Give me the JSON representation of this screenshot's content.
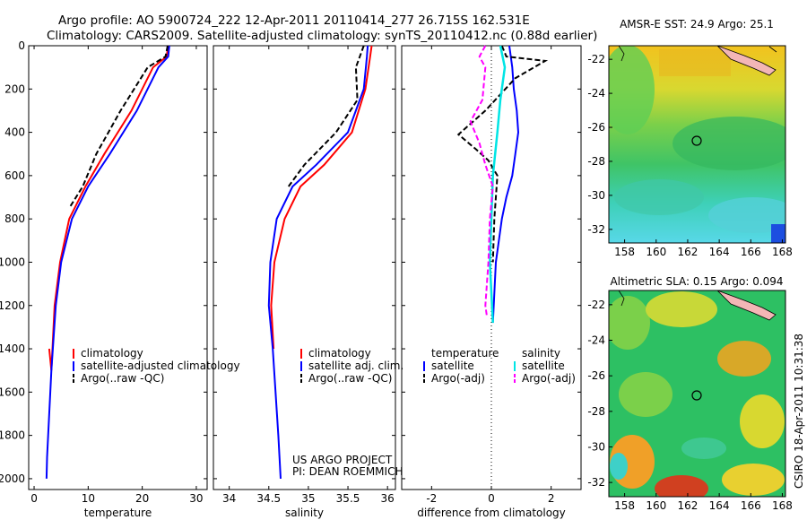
{
  "title": {
    "line1": "Argo profile: AO 5900724_222 12-Apr-2011 20110414_277 26.715S 162.531E",
    "line2": "Climatology: CARS2009. Satellite-adjusted climatology: synTS_20110412.nc (0.88d earlier)"
  },
  "side_label": "CSIRO 18-Apr-2011 10:31:38",
  "colors": {
    "climatology": "#ff0000",
    "satellite": "#0000ff",
    "argo": "#000000",
    "satellite_salinity": "#00e5e5",
    "argo_salinity": "#ff00ff"
  },
  "chart_data": [
    {
      "type": "line",
      "id": "temperature",
      "xlabel": "temperature",
      "ylabel": "",
      "xlim": [
        -1,
        32
      ],
      "ylim": [
        2050,
        0
      ],
      "xticks": [
        0,
        10,
        20,
        30
      ],
      "yticks": [
        0,
        200,
        400,
        600,
        800,
        1000,
        1200,
        1400,
        1600,
        1800,
        2000
      ],
      "legend": {
        "position": "lower-right",
        "entries": [
          "climatology",
          "satellite-adjusted climatology",
          "Argo(..raw -QC)"
        ]
      },
      "series": [
        {
          "name": "climatology",
          "color": "#ff0000",
          "dash": "",
          "x": [
            24.8,
            24.5,
            22,
            18,
            13,
            9.5,
            6.5,
            4.8,
            3.8,
            3.2,
            2.8
          ],
          "y": [
            0,
            50,
            100,
            300,
            500,
            650,
            800,
            1000,
            1200,
            1500,
            1400
          ]
        },
        {
          "name": "satellite-adjusted climatology",
          "color": "#0000ff",
          "dash": "",
          "x": [
            25,
            24.8,
            23,
            19,
            14,
            10,
            7,
            5,
            4,
            3.2,
            2.4,
            2.3
          ],
          "y": [
            0,
            50,
            100,
            300,
            500,
            650,
            800,
            1000,
            1200,
            1500,
            1900,
            2000
          ]
        },
        {
          "name": "Argo(..raw -QC)",
          "color": "#000000",
          "dash": "6,3",
          "x": [
            24.7,
            24.3,
            21,
            16,
            11.5,
            9,
            6.5
          ],
          "y": [
            0,
            50,
            100,
            300,
            500,
            650,
            750
          ]
        }
      ]
    },
    {
      "type": "line",
      "id": "salinity",
      "xlabel": "salinity",
      "ylabel": "",
      "xlim": [
        33.8,
        36.1
      ],
      "ylim": [
        2050,
        0
      ],
      "xticks": [
        34,
        34.5,
        35,
        35.5,
        36
      ],
      "legend": {
        "position": "lower-right",
        "entries": [
          "climatology",
          "satellite adj. clim.",
          "Argo(..raw -QC)"
        ]
      },
      "series": [
        {
          "name": "climatology",
          "color": "#ff0000",
          "dash": "",
          "x": [
            35.8,
            35.78,
            35.72,
            35.55,
            35.2,
            34.9,
            34.7,
            34.57,
            34.53,
            34.56
          ],
          "y": [
            0,
            50,
            200,
            400,
            550,
            650,
            800,
            1000,
            1200,
            1400
          ]
        },
        {
          "name": "satellite adj. clim.",
          "color": "#0000ff",
          "dash": "",
          "x": [
            35.75,
            35.74,
            35.7,
            35.5,
            35.1,
            34.8,
            34.6,
            34.52,
            34.5,
            34.55,
            34.62,
            34.65
          ],
          "y": [
            0,
            50,
            200,
            400,
            550,
            650,
            800,
            1000,
            1200,
            1400,
            1800,
            2000
          ]
        },
        {
          "name": "Argo(..raw -QC)",
          "color": "#000000",
          "dash": "6,3",
          "x": [
            35.7,
            35.6,
            35.62,
            35.35,
            34.95,
            34.75
          ],
          "y": [
            0,
            100,
            250,
            400,
            550,
            650
          ]
        }
      ]
    },
    {
      "type": "line",
      "id": "difference",
      "xlabel": "difference from climatology",
      "ylabel": "",
      "xlim": [
        -3,
        3
      ],
      "ylim": [
        2050,
        0
      ],
      "xticks": [
        -2,
        0,
        2
      ],
      "legend": {
        "position": "lower-right",
        "headers": [
          "temperature",
          "salinity"
        ],
        "entries": [
          "satellite",
          "Argo(-adj)",
          "satellite",
          "Argo(-adj)"
        ]
      },
      "series": [
        {
          "name": "satellite",
          "group": "temperature",
          "color": "#0000ff",
          "dash": "",
          "x": [
            0.6,
            0.7,
            0.75,
            0.85,
            0.9,
            0.8,
            0.7,
            0.5,
            0.35,
            0.15,
            0.05
          ],
          "y": [
            0,
            100,
            200,
            300,
            400,
            500,
            600,
            700,
            800,
            1000,
            1280
          ]
        },
        {
          "name": "Argo(-adj)",
          "group": "temperature",
          "color": "#000000",
          "dash": "6,3",
          "x": [
            0.35,
            0.5,
            1.8,
            0.8,
            -0.2,
            -1.1,
            -0.5,
            -0.1,
            0.2,
            0.1,
            0.05
          ],
          "y": [
            0,
            50,
            70,
            150,
            300,
            410,
            480,
            530,
            600,
            800,
            1000
          ]
        },
        {
          "name": "satellite",
          "group": "salinity",
          "color": "#00e5e5",
          "dash": "",
          "x": [
            0.3,
            0.45,
            0.3,
            0.2,
            0.05,
            0,
            -0.05,
            0.05
          ],
          "y": [
            0,
            100,
            250,
            400,
            600,
            800,
            1000,
            1280
          ]
        },
        {
          "name": "Argo(-adj)",
          "group": "salinity",
          "color": "#ff00ff",
          "dash": "6,3",
          "x": [
            -0.2,
            -0.4,
            -0.2,
            -0.3,
            -0.7,
            -0.4,
            -0.2,
            0.05,
            -0.05,
            -0.1,
            -0.2,
            -0.15
          ],
          "y": [
            0,
            50,
            100,
            250,
            350,
            450,
            550,
            650,
            800,
            1000,
            1200,
            1250
          ]
        }
      ]
    },
    {
      "type": "heatmap",
      "id": "sst_map",
      "title": "AMSR-E SST: 24.9  Argo: 25.1",
      "xticks": [
        158,
        160,
        162,
        164,
        166,
        168
      ],
      "yticks": [
        -22,
        -24,
        -26,
        -28,
        -30,
        -32
      ],
      "xlim": [
        157,
        168.2
      ],
      "ylim": [
        -32.8,
        -21.2
      ],
      "marker": {
        "lon": 162.531,
        "lat": -26.715
      }
    },
    {
      "type": "heatmap",
      "id": "sla_map",
      "title": "Altimetric SLA: 0.15  Argo: 0.094",
      "xticks": [
        158,
        160,
        162,
        164,
        166,
        168
      ],
      "yticks": [
        -22,
        -24,
        -26,
        -28,
        -30,
        -32
      ],
      "xlim": [
        157,
        168.2
      ],
      "ylim": [
        -32.8,
        -21.2
      ],
      "marker": {
        "lon": 162.531,
        "lat": -26.715
      }
    }
  ],
  "footer": {
    "project": "US ARGO PROJECT",
    "pi": "PI: DEAN ROEMMICH"
  }
}
